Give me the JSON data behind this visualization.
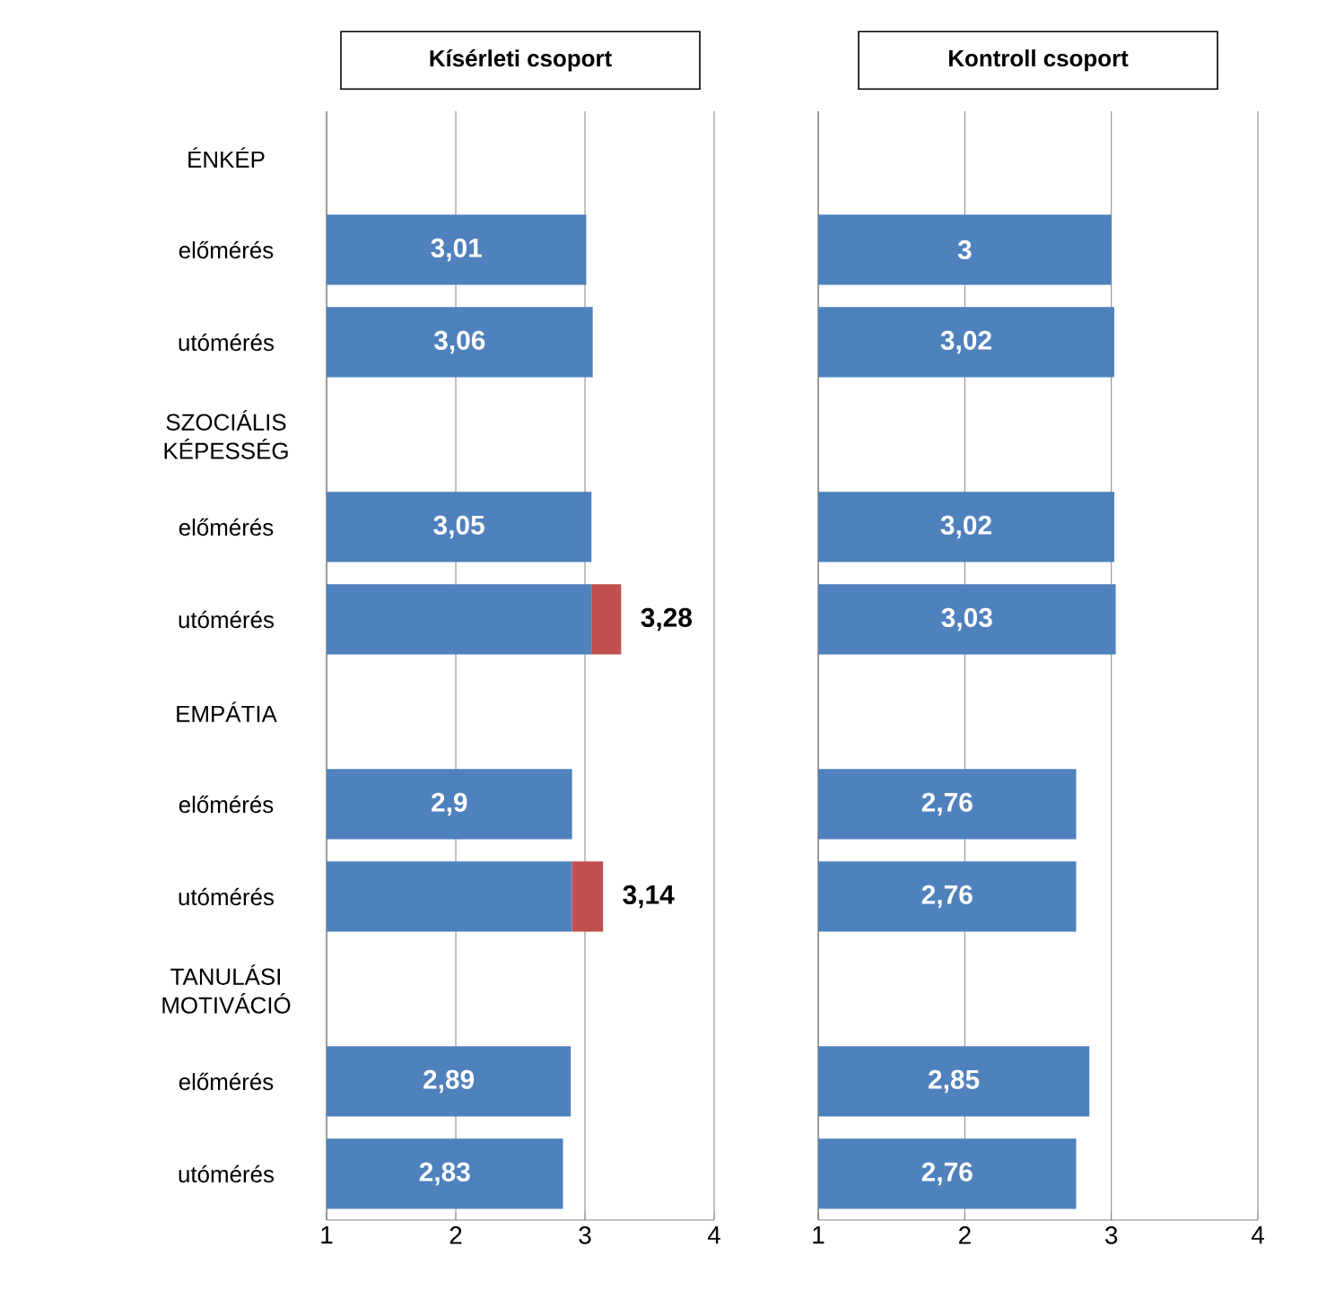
{
  "chart_data": [
    {
      "type": "bar",
      "orientation": "horizontal",
      "title": "Kísérleti csoport",
      "categories": [
        "ÉNKÉP",
        "előmérés",
        "utómérés",
        "SZOCIÁLIS KÉPESSÉG",
        "előmérés",
        "utómérés",
        "EMPÁTIA",
        "előmérés",
        "utómérés",
        "TANULÁSI MOTIVÁCIÓ",
        "előmérés",
        "utómérés"
      ],
      "series": [
        {
          "color": "#4f81bd",
          "values": [
            null,
            3.01,
            3.06,
            null,
            3.05,
            3.05,
            null,
            2.9,
            2.9,
            null,
            2.89,
            2.83
          ],
          "value_labels": [
            null,
            "3,01",
            "3,06",
            null,
            "3,05",
            null,
            null,
            "2,9",
            null,
            null,
            "2,89",
            "2,83"
          ]
        },
        {
          "color": "#c0504d",
          "base": [
            null,
            null,
            null,
            null,
            null,
            3.05,
            null,
            null,
            2.9,
            null,
            null,
            null
          ],
          "values": [
            null,
            null,
            null,
            null,
            null,
            0.23,
            null,
            null,
            0.24,
            null,
            null,
            null
          ],
          "value_labels": [
            null,
            null,
            null,
            null,
            null,
            "3,28",
            null,
            null,
            "3,14",
            null,
            null,
            null
          ]
        }
      ],
      "xlim": [
        1,
        4
      ],
      "xticks": [
        1,
        2,
        3,
        4
      ],
      "grid": "x"
    },
    {
      "type": "bar",
      "orientation": "horizontal",
      "title": "Kontroll csoport",
      "categories": [
        null,
        null,
        null,
        null,
        null,
        null,
        null,
        null,
        null,
        null,
        null,
        null
      ],
      "series": [
        {
          "color": "#4f81bd",
          "values": [
            null,
            3,
            3.02,
            null,
            3.02,
            3.03,
            null,
            2.76,
            2.76,
            null,
            2.85,
            2.76
          ],
          "value_labels": [
            null,
            "3",
            "3,02",
            null,
            "3,02",
            "3,03",
            null,
            "2,76",
            "2,76",
            null,
            "2,85",
            "2,76"
          ]
        }
      ],
      "xlim": [
        1,
        4
      ],
      "xticks": [
        1,
        2,
        3,
        4
      ],
      "grid": "x",
      "tick_labels": "x"
    }
  ]
}
